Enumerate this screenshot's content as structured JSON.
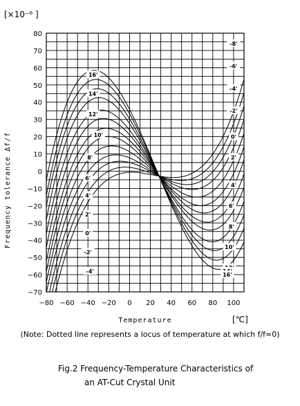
{
  "chart_data": {
    "type": "line",
    "title": "",
    "unit_label": "[×10⁻⁶ ]",
    "ylabel": "Frequency tolerance  Δf/f",
    "xlabel": "Temperature",
    "x_unit": "[℃]",
    "xlim": [
      -80,
      110
    ],
    "ylim": [
      -70,
      80
    ],
    "x_ticks": [
      -80,
      -60,
      -40,
      -20,
      0,
      20,
      40,
      60,
      80,
      100
    ],
    "y_ticks": [
      80,
      70,
      60,
      50,
      40,
      30,
      20,
      10,
      0,
      -10,
      -20,
      -30,
      -40,
      -50,
      -60,
      -70
    ],
    "grid": true,
    "inflection_point": [
      27,
      0
    ],
    "series": [
      {
        "name": "16'",
        "values": [
          [
            -80,
            -5
          ],
          [
            -40,
            57
          ],
          [
            27,
            0
          ],
          [
            93,
            -57
          ],
          [
            110,
            -40
          ]
        ]
      },
      {
        "name": "14'",
        "values": [
          [
            -80,
            -14
          ],
          [
            -40,
            51
          ],
          [
            27,
            0
          ],
          [
            93,
            -51
          ],
          [
            110,
            -32
          ]
        ]
      },
      {
        "name": "12'",
        "values": [
          [
            -80,
            -20
          ],
          [
            -40,
            45
          ],
          [
            27,
            0
          ],
          [
            93,
            -45
          ],
          [
            110,
            -24
          ]
        ]
      },
      {
        "name": "10'",
        "values": [
          [
            -80,
            -28
          ],
          [
            -40,
            39
          ],
          [
            27,
            0
          ],
          [
            93,
            -39
          ],
          [
            110,
            -16
          ]
        ]
      },
      {
        "name": "8'",
        "values": [
          [
            -80,
            -36
          ],
          [
            -40,
            31
          ],
          [
            27,
            0
          ],
          [
            93,
            -31
          ],
          [
            110,
            -8
          ]
        ]
      },
      {
        "name": "6'",
        "values": [
          [
            -80,
            -44
          ],
          [
            -40,
            25
          ],
          [
            27,
            0
          ],
          [
            93,
            -25
          ],
          [
            110,
            0
          ]
        ]
      },
      {
        "name": "4'",
        "values": [
          [
            -80,
            -52
          ],
          [
            -40,
            18
          ],
          [
            27,
            0
          ],
          [
            93,
            -18
          ],
          [
            110,
            8
          ]
        ]
      },
      {
        "name": "2'",
        "values": [
          [
            -80,
            -58
          ],
          [
            -40,
            12
          ],
          [
            27,
            0
          ],
          [
            93,
            -12
          ],
          [
            110,
            16
          ]
        ]
      },
      {
        "name": "0'",
        "values": [
          [
            -80,
            -64
          ],
          [
            -40,
            5
          ],
          [
            27,
            0
          ],
          [
            93,
            -5
          ],
          [
            110,
            24
          ]
        ]
      },
      {
        "name": "-2'",
        "values": [
          [
            -80,
            -70
          ],
          [
            -40,
            -2
          ],
          [
            27,
            0
          ],
          [
            93,
            2
          ],
          [
            110,
            32
          ]
        ]
      },
      {
        "name": "-4'",
        "values": [
          [
            -80,
            -78
          ],
          [
            -40,
            -8
          ],
          [
            27,
            0
          ],
          [
            93,
            8
          ],
          [
            110,
            40
          ]
        ]
      },
      {
        "name": "-6'",
        "values": [
          [
            -80,
            -85
          ],
          [
            -40,
            -14
          ],
          [
            27,
            0
          ],
          [
            93,
            14
          ],
          [
            110,
            48
          ]
        ]
      },
      {
        "name": "-8'",
        "values": [
          [
            -80,
            -92
          ],
          [
            -40,
            -20
          ],
          [
            27,
            0
          ],
          [
            93,
            20
          ],
          [
            110,
            56
          ]
        ]
      }
    ],
    "left_labels": [
      {
        "text": "16'",
        "x": -35,
        "y": 56
      },
      {
        "text": "14'",
        "x": -35,
        "y": 45
      },
      {
        "text": "12'",
        "x": -35,
        "y": 33
      },
      {
        "text": "10'",
        "x": -30,
        "y": 21
      },
      {
        "text": "8'",
        "x": -38,
        "y": 8
      },
      {
        "text": "6'",
        "x": -40,
        "y": -4
      },
      {
        "text": "4'",
        "x": -40,
        "y": -14
      },
      {
        "text": "2'",
        "x": -40,
        "y": -25
      },
      {
        "text": "0'",
        "x": -40,
        "y": -36
      },
      {
        "text": "-2'",
        "x": -40,
        "y": -47
      },
      {
        "text": "-4'",
        "x": -38,
        "y": -58
      }
    ],
    "right_labels": [
      {
        "text": "-8'",
        "x": 100,
        "y": 74
      },
      {
        "text": "-6'",
        "x": 100,
        "y": 61
      },
      {
        "text": "-4'",
        "x": 100,
        "y": 48
      },
      {
        "text": "-2'",
        "x": 100,
        "y": 35
      },
      {
        "text": "0'",
        "x": 100,
        "y": 20
      },
      {
        "text": "2'",
        "x": 100,
        "y": 8
      },
      {
        "text": "4'",
        "x": 100,
        "y": -8
      },
      {
        "text": "6'",
        "x": 98,
        "y": -20
      },
      {
        "text": "8'",
        "x": 98,
        "y": -32
      },
      {
        "text": "10'",
        "x": 96,
        "y": -44
      },
      {
        "text": "12'",
        "x": 96,
        "y": -56
      },
      {
        "text": "14'",
        "x": 94,
        "y": -58
      },
      {
        "text": "16'",
        "x": 94,
        "y": -60
      }
    ]
  },
  "note": "(Note: Dotted line represents a locus of temperature at which f/f=0)",
  "caption_line1": "Fig.2 Frequency-Temperature Characteristics of",
  "caption_line2": "an AT-Cut Crystal Unit"
}
